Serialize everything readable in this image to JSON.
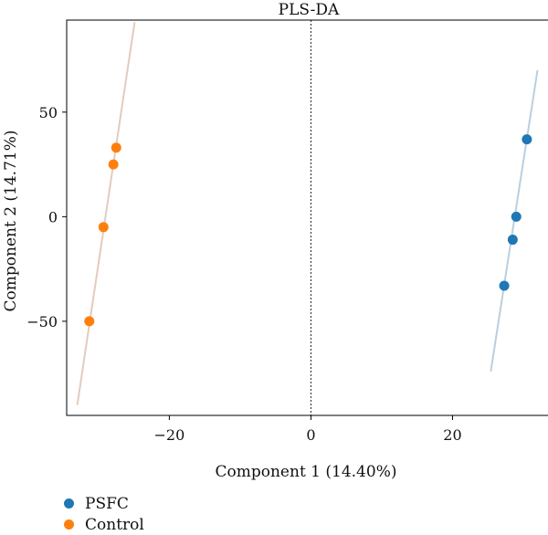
{
  "chart_data": {
    "type": "scatter",
    "title": "PLS-DA",
    "xlabel": "Component 1 (14.40%)",
    "ylabel": "Component 2 (14.71%)",
    "xlim": [
      -34.5,
      34
    ],
    "ylim": [
      -95,
      94
    ],
    "xticks": [
      -20,
      0,
      20
    ],
    "xtick_labels": [
      "−20",
      "0",
      "20"
    ],
    "yticks": [
      -50,
      0,
      50
    ],
    "ytick_labels": [
      "−50",
      "0",
      "50"
    ],
    "grid": false,
    "reference_line": {
      "x": 0,
      "style": "dotted"
    },
    "legend_position": "bottom-left",
    "series": [
      {
        "name": "PSFC",
        "color": "#1f77b4",
        "line_color": "#b9cfe0",
        "points": [
          {
            "x": 30.5,
            "y": 37
          },
          {
            "x": 29.0,
            "y": 0
          },
          {
            "x": 28.5,
            "y": -11
          },
          {
            "x": 27.3,
            "y": -33
          }
        ],
        "fit_line": [
          [
            25.4,
            -74
          ],
          [
            32.0,
            70
          ]
        ]
      },
      {
        "name": "Control",
        "color": "#ff7f0e",
        "line_color": "#e3cbbd",
        "points": [
          {
            "x": -27.5,
            "y": 33
          },
          {
            "x": -27.9,
            "y": 25
          },
          {
            "x": -29.3,
            "y": -5
          },
          {
            "x": -31.3,
            "y": -50
          }
        ],
        "fit_line": [
          [
            -33.0,
            -90
          ],
          [
            -24.9,
            93
          ]
        ]
      }
    ]
  }
}
